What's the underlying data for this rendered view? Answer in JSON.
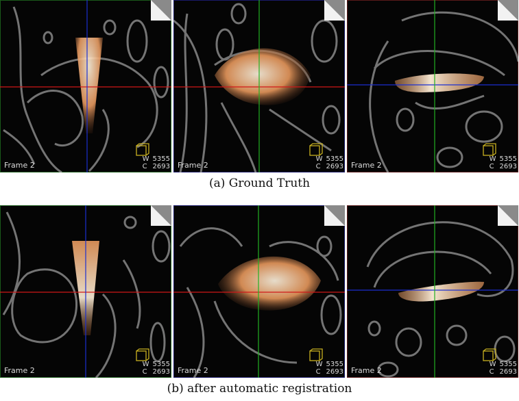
{
  "figure": {
    "captions": {
      "top": "(a) Ground Truth",
      "bottom": "(b) after automatic registration"
    },
    "panel_text": {
      "frame": "Frame  2",
      "w_label": "W",
      "c_label": "C",
      "w_value": "5355",
      "c_value": "2693"
    },
    "colors": {
      "crosshair_red": "#d01818",
      "crosshair_blue": "#1c2fd0",
      "crosshair_green": "#22b022",
      "ultrasound_overlay": "#f4a46a",
      "orientation_cube": "#c8b020"
    }
  }
}
